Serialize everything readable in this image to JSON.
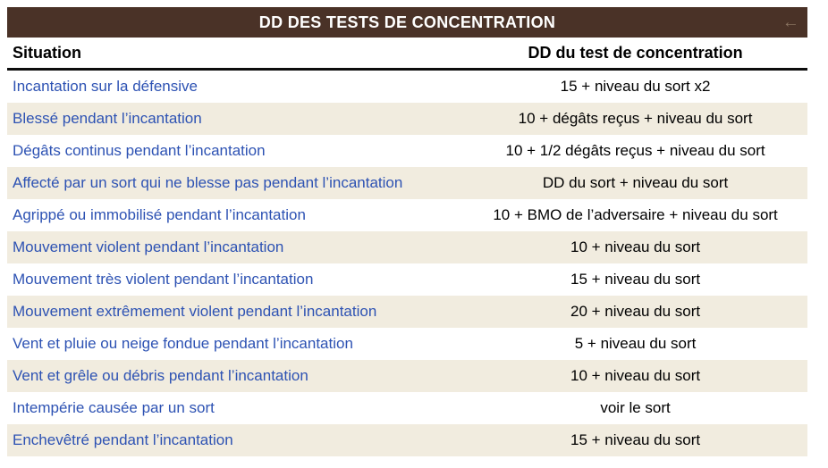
{
  "table": {
    "title": "DD DES TESTS DE CONCENTRATION",
    "back_arrow_icon": "←",
    "columns": {
      "situation": "Situation",
      "dd": "DD du test de concentration"
    },
    "rows": [
      {
        "situation": "Incantation sur la défensive",
        "dd": "15 + niveau du sort x2"
      },
      {
        "situation": "Blessé pendant l’incantation",
        "dd": "10 + dégâts reçus + niveau du sort"
      },
      {
        "situation": "Dégâts continus pendant l’incantation",
        "dd": "10 + 1/2 dégâts reçus + niveau du sort"
      },
      {
        "situation": "Affecté par un sort qui ne blesse pas pendant l’incantation",
        "dd": "DD du sort + niveau du sort"
      },
      {
        "situation": "Agrippé ou immobilisé pendant l’incantation",
        "dd": "10 + BMO de l’adversaire + niveau du sort"
      },
      {
        "situation": "Mouvement violent pendant l’incantation",
        "dd": "10 + niveau du sort"
      },
      {
        "situation": "Mouvement très violent pendant l’incantation",
        "dd": "15 + niveau du sort"
      },
      {
        "situation": "Mouvement extrêmement violent pendant l’incantation",
        "dd": "20 + niveau du sort"
      },
      {
        "situation": "Vent et pluie ou neige fondue pendant l’incantation",
        "dd": "5 + niveau du sort"
      },
      {
        "situation": "Vent et grêle ou débris pendant l’incantation",
        "dd": "10 + niveau du sort"
      },
      {
        "situation": "Intempérie causée par un sort",
        "dd": "voir le sort"
      },
      {
        "situation": "Enchevêtré pendant l’incantation",
        "dd": "15 + niveau du sort"
      }
    ],
    "colors": {
      "header_bg": "#4a3227",
      "row_alt_bg": "#f1ecdf",
      "link_color": "#2d52b3"
    }
  }
}
